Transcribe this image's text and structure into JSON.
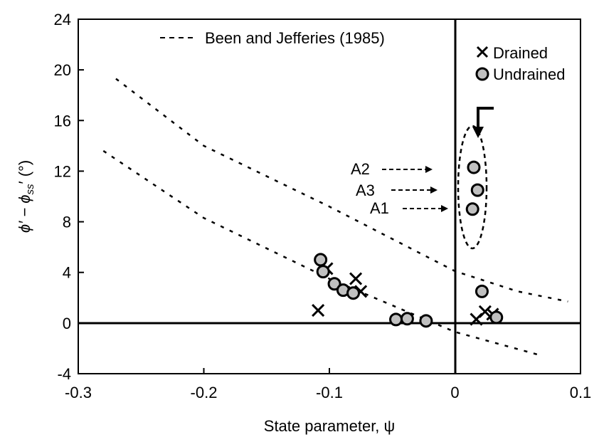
{
  "chart_data": {
    "type": "scatter",
    "xlabel": "State parameter, ψ",
    "ylabel_parts": {
      "a": "ϕ′ − ϕ",
      "sub": "ss",
      "b": "′ (°)"
    },
    "xlim": [
      -0.3,
      0.1
    ],
    "ylim": [
      -4,
      24
    ],
    "xticks": [
      "-0.3",
      "-0.2",
      "-0.1",
      "0",
      "0.1"
    ],
    "xtick_values": [
      -0.3,
      -0.2,
      -0.1,
      0,
      0.1
    ],
    "yticks": [
      "-4",
      "0",
      "4",
      "8",
      "12",
      "16",
      "20",
      "24"
    ],
    "ytick_values": [
      -4,
      0,
      4,
      8,
      12,
      16,
      20,
      24
    ],
    "legend": {
      "dashed": "Been and Jefferies (1985)",
      "drained": "Drained",
      "undrained": "Undrained"
    },
    "series": [
      {
        "name": "Drained",
        "marker": "x",
        "points": [
          [
            -0.109,
            1.0
          ],
          [
            -0.102,
            4.3
          ],
          [
            -0.079,
            3.5
          ],
          [
            -0.075,
            2.5
          ],
          [
            0.017,
            0.3
          ],
          [
            0.024,
            0.9
          ],
          [
            0.03,
            0.7
          ]
        ]
      },
      {
        "name": "Undrained",
        "marker": "circle",
        "color": "#c0c0c0",
        "points": [
          [
            -0.107,
            5.0
          ],
          [
            -0.105,
            4.06
          ],
          [
            -0.096,
            3.1
          ],
          [
            -0.089,
            2.6
          ],
          [
            -0.081,
            2.37
          ],
          [
            -0.047,
            0.28
          ],
          [
            -0.038,
            0.34
          ],
          [
            -0.023,
            0.17
          ],
          [
            0.0215,
            2.5
          ],
          [
            0.033,
            0.45
          ],
          [
            0.015,
            12.3
          ],
          [
            0.018,
            10.5
          ],
          [
            0.014,
            9.0
          ]
        ]
      },
      {
        "name": "Been and Jefferies (1985) upper",
        "style": "dashed",
        "points": [
          [
            -0.27,
            19.3
          ],
          [
            -0.2,
            14.0
          ],
          [
            -0.1,
            9.2
          ],
          [
            0,
            4.1
          ],
          [
            0.05,
            2.5
          ],
          [
            0.09,
            1.7
          ]
        ]
      },
      {
        "name": "Been and Jefferies (1985) lower",
        "style": "dashed",
        "points": [
          [
            -0.28,
            13.6
          ],
          [
            -0.2,
            8.3
          ],
          [
            -0.1,
            3.5
          ],
          [
            0,
            -0.7
          ],
          [
            0.07,
            -2.6
          ]
        ]
      }
    ],
    "annotations": [
      {
        "label": "A2",
        "x": 0.015,
        "y": 12.3
      },
      {
        "label": "A3",
        "x": 0.018,
        "y": 10.5
      },
      {
        "label": "A1",
        "x": 0.014,
        "y": 9.0
      }
    ]
  }
}
